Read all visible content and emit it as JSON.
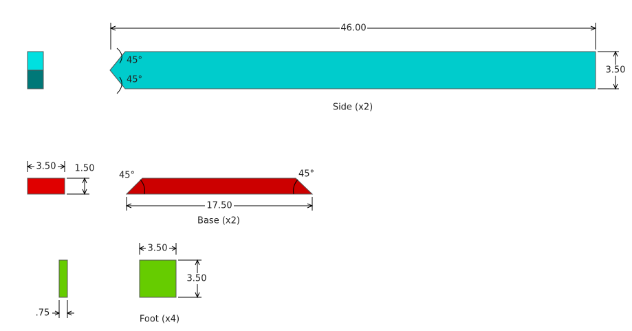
{
  "side": {
    "length": "46.00",
    "height": "3.50",
    "angles": [
      "45°",
      "45°"
    ],
    "label": "Side (x2)"
  },
  "base": {
    "width": "3.50",
    "thickness": "1.50",
    "length": "17.50",
    "angles": [
      "45°",
      "45°"
    ],
    "label": "Base (x2)"
  },
  "foot": {
    "thickness": ".75",
    "width": "3.50",
    "height": "3.50",
    "label": "Foot (x4)"
  }
}
